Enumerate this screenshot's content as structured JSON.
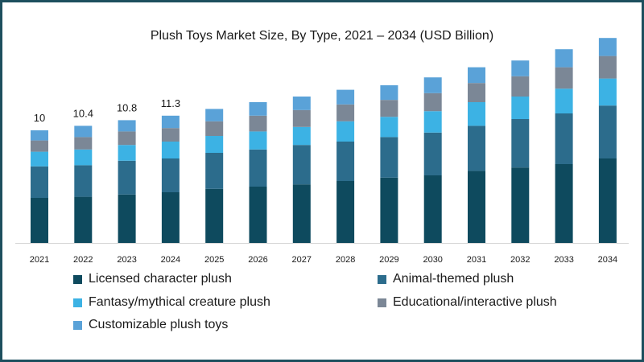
{
  "chart_data": {
    "type": "bar",
    "stacked": true,
    "title": "Plush Toys Market Size, By Type, 2021 – 2034 (USD Billion)",
    "xlabel": "",
    "ylabel": "",
    "categories": [
      "2021",
      "2022",
      "2023",
      "2024",
      "2025",
      "2026",
      "2027",
      "2028",
      "2029",
      "2030",
      "2031",
      "2032",
      "2033",
      "2034"
    ],
    "totals_labels": [
      "10",
      "10.4",
      "10.8",
      "11.3",
      "",
      "",
      "",
      "",
      "",
      "",
      "",
      "",
      "",
      ""
    ],
    "series": [
      {
        "name": "Licensed character plush",
        "color": "#0e4a5e",
        "values": [
          4.0,
          4.1,
          4.3,
          4.5,
          4.8,
          5.0,
          5.2,
          5.5,
          5.8,
          6.0,
          6.4,
          6.7,
          7.0,
          7.5
        ]
      },
      {
        "name": "Animal-themed plush",
        "color": "#2c6c8c",
        "values": [
          2.8,
          2.8,
          3.0,
          3.0,
          3.2,
          3.3,
          3.5,
          3.5,
          3.6,
          3.8,
          4.0,
          4.3,
          4.5,
          4.7
        ]
      },
      {
        "name": "Fantasy/mythical creature plush",
        "color": "#3cb2e4",
        "values": [
          1.3,
          1.4,
          1.4,
          1.5,
          1.5,
          1.6,
          1.6,
          1.8,
          1.8,
          1.9,
          2.1,
          2.0,
          2.2,
          2.4
        ]
      },
      {
        "name": "Educational/interactive plush",
        "color": "#7b8796",
        "values": [
          1.0,
          1.1,
          1.2,
          1.2,
          1.3,
          1.4,
          1.5,
          1.5,
          1.5,
          1.6,
          1.7,
          1.8,
          1.9,
          2.0
        ]
      },
      {
        "name": "Customizable plush toys",
        "color": "#5aa2d8",
        "values": [
          0.9,
          1.0,
          1.0,
          1.1,
          1.1,
          1.2,
          1.2,
          1.3,
          1.3,
          1.4,
          1.4,
          1.4,
          1.6,
          1.6
        ]
      }
    ],
    "ylim": [
      0,
      18.5
    ],
    "grid": false,
    "legend_position": "bottom"
  }
}
